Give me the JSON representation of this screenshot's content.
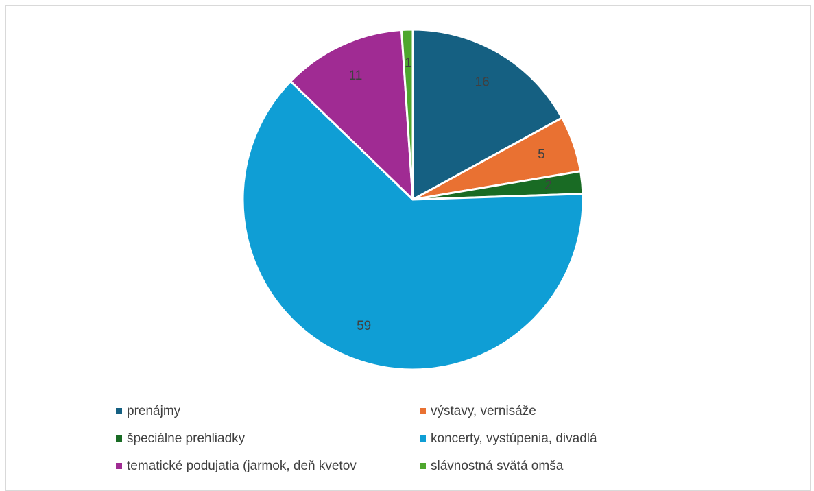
{
  "chart_data": {
    "type": "pie",
    "categories": [
      "prenájmy",
      "výstavy, vernisáže",
      "špeciálne prehliadky",
      "koncerty, vystúpenia, divadlá",
      "tematické podujatia (jarmok, deň kvetov",
      "slávnostná svätá omša"
    ],
    "values": [
      16,
      5,
      2,
      59,
      11,
      1
    ],
    "data_labels": [
      "16",
      "5",
      "2",
      "59",
      "11",
      "1"
    ],
    "colors": [
      "#156082",
      "#E97132",
      "#196B24",
      "#0F9ED5",
      "#A02B93",
      "#4EA72E"
    ],
    "legend_position": "bottom",
    "start_angle_deg": 0,
    "direction": "clockwise"
  }
}
